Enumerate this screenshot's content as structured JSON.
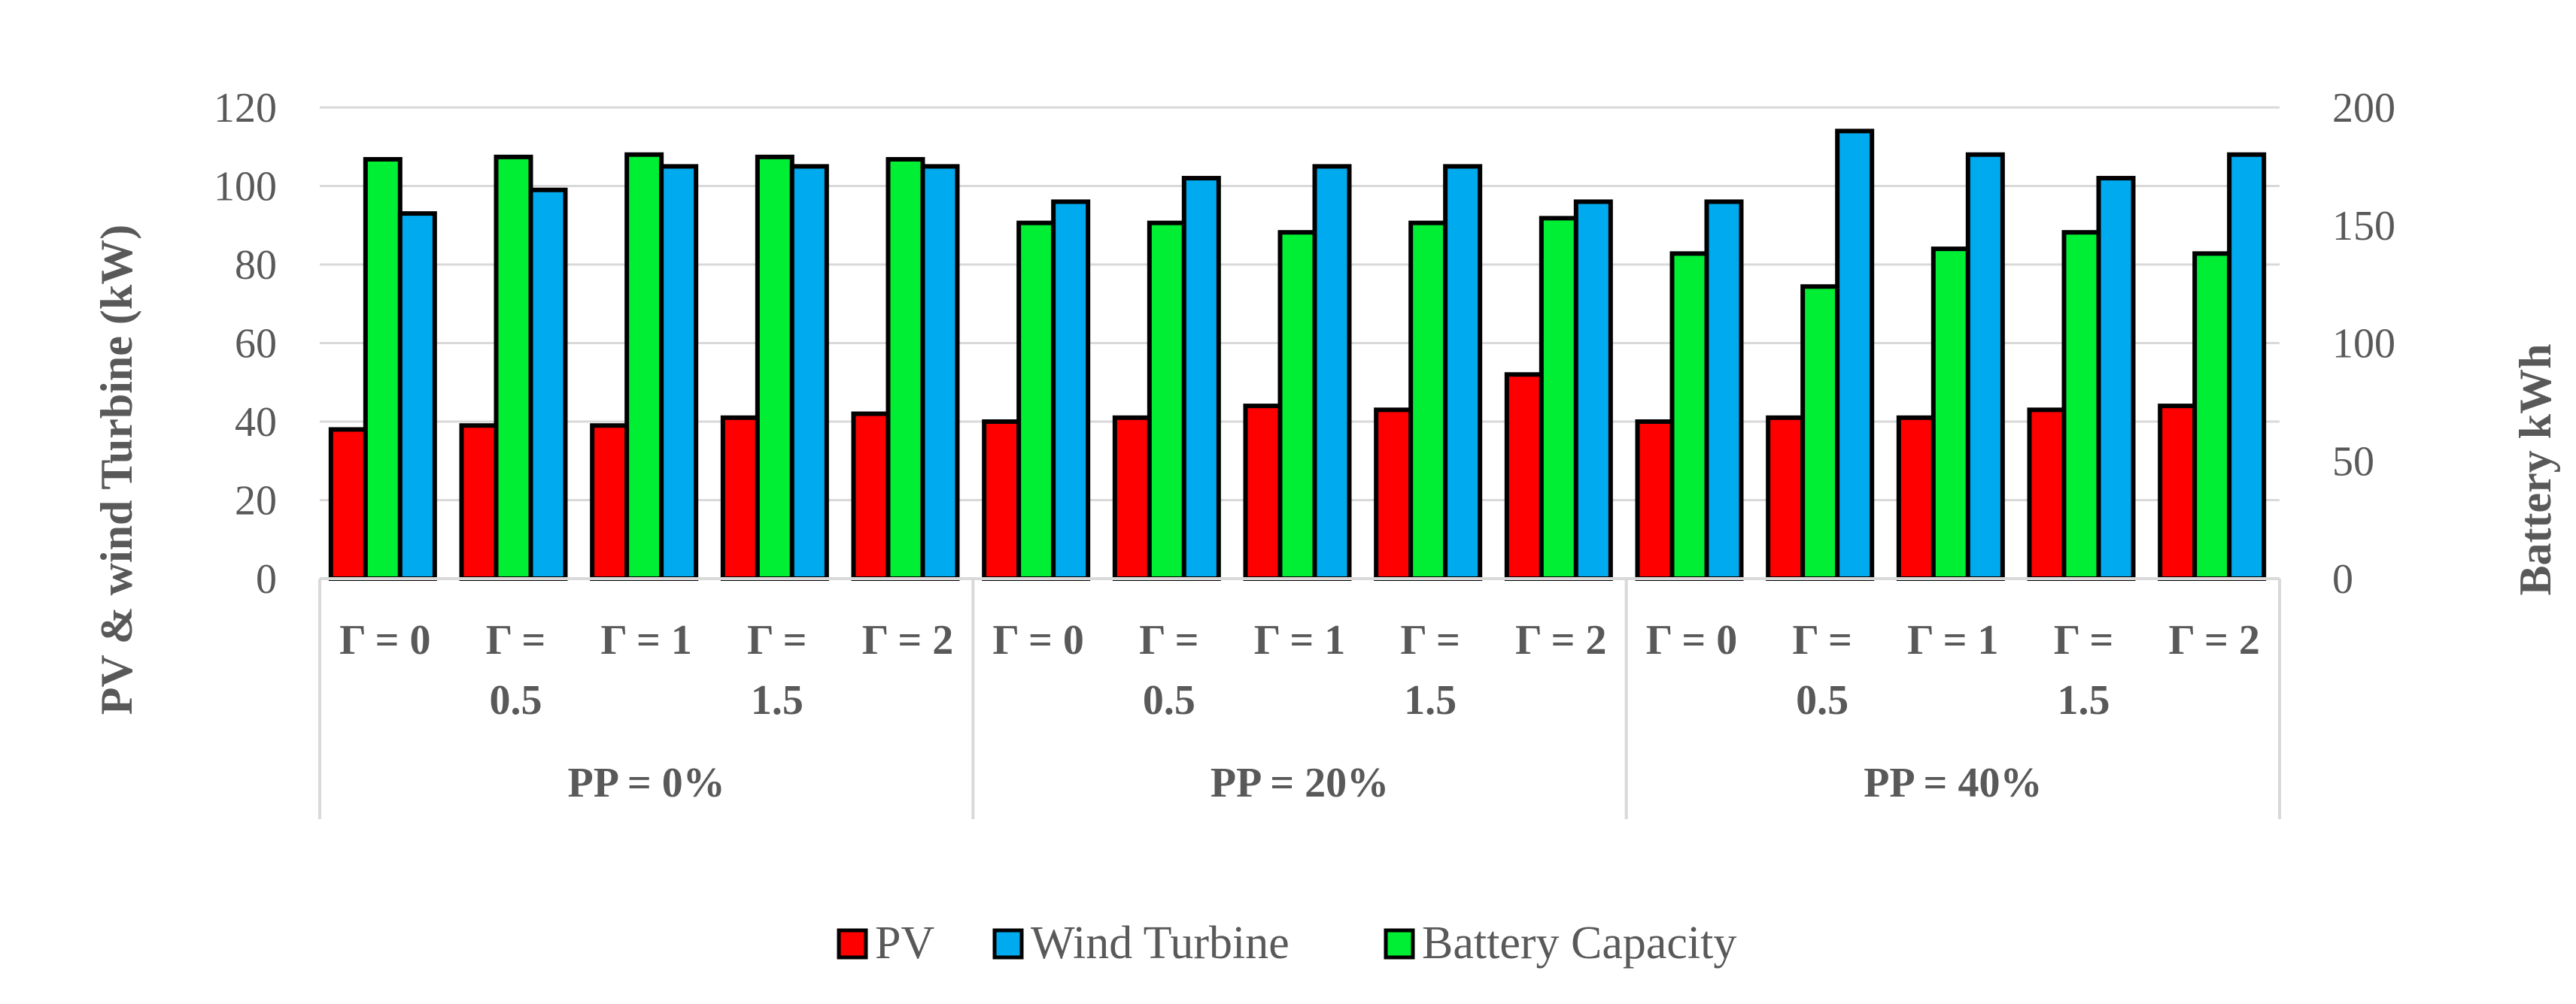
{
  "chart_data": {
    "type": "bar",
    "title": "",
    "ylabel": "PV & wind Turbine (kW)",
    "y2label": "Battery kWh",
    "ylim": [
      0,
      120
    ],
    "y2lim": [
      0,
      200
    ],
    "yticks": [
      "0",
      "20",
      "40",
      "60",
      "80",
      "100",
      "120"
    ],
    "y2ticks": [
      "0",
      "50",
      "100",
      "150",
      "200"
    ],
    "groups": [
      {
        "label": "PP  =  0%",
        "categories": [
          [
            "Γ = 0"
          ],
          [
            "Γ =",
            "0.5"
          ],
          [
            "Γ = 1"
          ],
          [
            "Γ =",
            "1.5"
          ],
          [
            "Γ = 2"
          ]
        ]
      },
      {
        "label": "PP = 20%",
        "categories": [
          [
            "Γ = 0"
          ],
          [
            "Γ =",
            "0.5"
          ],
          [
            "Γ = 1"
          ],
          [
            "Γ =",
            "1.5"
          ],
          [
            "Γ = 2"
          ]
        ]
      },
      {
        "label": "PP = 40%",
        "categories": [
          [
            "Γ = 0"
          ],
          [
            "Γ =",
            "0.5"
          ],
          [
            "Γ = 1"
          ],
          [
            "Γ =",
            "1.5"
          ],
          [
            "Γ = 2"
          ]
        ]
      }
    ],
    "series": [
      {
        "name": "PV",
        "axis": "left",
        "color": "#ff0000",
        "values": [
          38,
          39,
          39,
          41,
          42,
          40,
          41,
          44,
          43,
          52,
          40,
          41,
          41,
          43,
          44
        ]
      },
      {
        "name": "Battery Capacity",
        "axis": "right",
        "color": "#00ee33",
        "values": [
          178,
          179,
          180,
          179,
          178,
          151,
          151,
          147,
          151,
          153,
          138,
          124,
          140,
          147,
          138
        ]
      },
      {
        "name": "Wind Turbine",
        "axis": "left",
        "color": "#00aaee",
        "values": [
          93,
          99,
          105,
          105,
          105,
          96,
          102,
          105,
          105,
          96,
          96,
          114,
          108,
          102,
          108
        ]
      }
    ],
    "legend": {
      "position": "bottom",
      "entries": [
        {
          "name": "PV",
          "color": "#ff0000"
        },
        {
          "name": "Wind Turbine",
          "color": "#00aaee"
        },
        {
          "name": "Battery Capacity",
          "color": "#00ee33"
        }
      ]
    },
    "grid": true
  }
}
